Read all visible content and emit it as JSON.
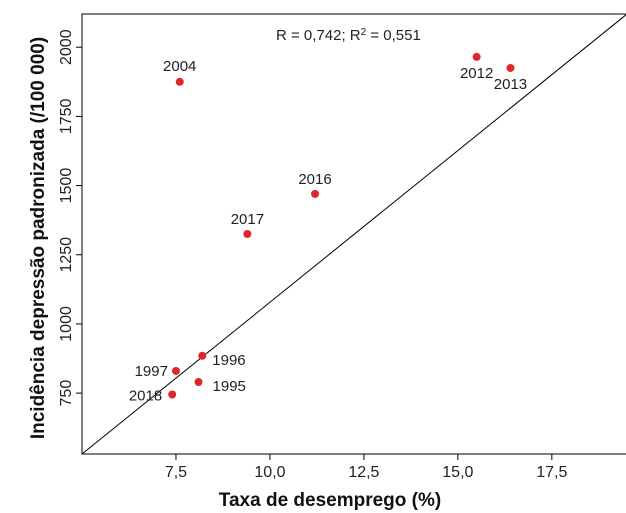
{
  "chart_data": {
    "type": "scatter",
    "xlabel": "Taxa de desemprego (%)",
    "ylabel": "Incidência depressão padronizada (/100 000)",
    "xlim": [
      5.0,
      19.5
    ],
    "ylim": [
      530,
      2120
    ],
    "xticks": [
      "7,5",
      "10,0",
      "12,5",
      "15,0",
      "17,5"
    ],
    "yticks": [
      "750",
      "1000",
      "1250",
      "1500",
      "1750",
      "2000"
    ],
    "xtick_values": [
      7.5,
      10.0,
      12.5,
      15.0,
      17.5
    ],
    "ytick_values": [
      750,
      1000,
      1250,
      1500,
      1750,
      2000
    ],
    "grid": false,
    "point_color": "#e0262b",
    "points": [
      {
        "label": "1995",
        "x": 8.1,
        "y": 790
      },
      {
        "label": "1996",
        "x": 8.2,
        "y": 885
      },
      {
        "label": "1997",
        "x": 7.5,
        "y": 830
      },
      {
        "label": "2004",
        "x": 7.6,
        "y": 1875
      },
      {
        "label": "2012",
        "x": 15.5,
        "y": 1965
      },
      {
        "label": "2013",
        "x": 16.4,
        "y": 1925
      },
      {
        "label": "2016",
        "x": 11.2,
        "y": 1470
      },
      {
        "label": "2017",
        "x": 9.4,
        "y": 1325
      },
      {
        "label": "2018",
        "x": 7.4,
        "y": 745
      }
    ],
    "fit_line": {
      "x": [
        5.0,
        19.5
      ],
      "y": [
        530,
        2120
      ]
    },
    "annotation": {
      "r_text": "R = 0,742; R",
      "sup_text": "2",
      "rest_text": " = 0,551"
    }
  }
}
